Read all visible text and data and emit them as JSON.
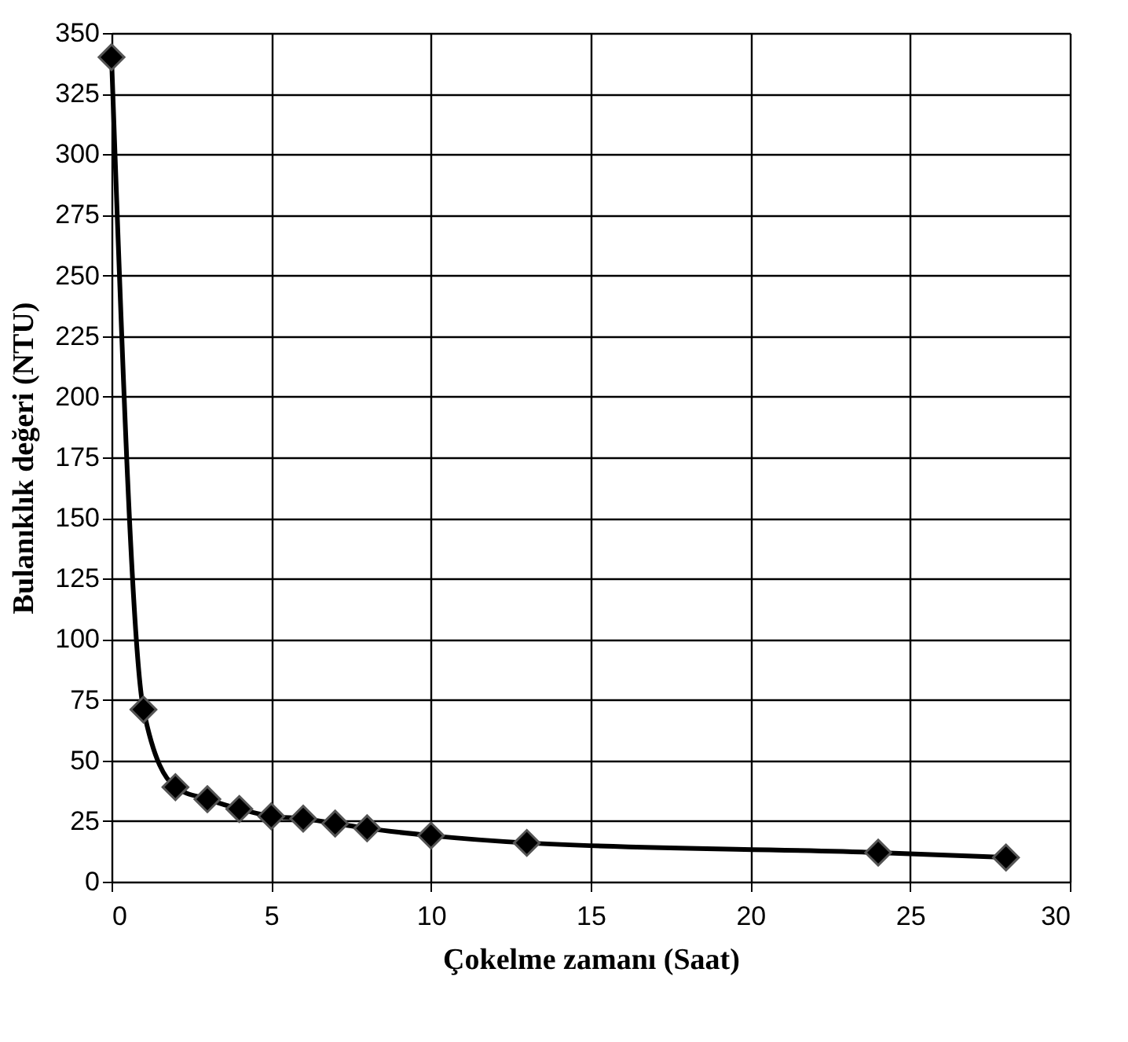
{
  "chart_data": {
    "type": "line",
    "xlabel": "Çokelme zamanı (Saat)",
    "ylabel": "Bulanıklık değeri (NTU)",
    "x": [
      0,
      1,
      2,
      3,
      4,
      5,
      6,
      7,
      8,
      10,
      13,
      24,
      28
    ],
    "series": [
      {
        "color": "#000000",
        "values": [
          340,
          71,
          39,
          34,
          30,
          27,
          26,
          24,
          22,
          19,
          16,
          12,
          10
        ]
      }
    ],
    "xlim": [
      0,
      30
    ],
    "xticks": [
      0,
      5,
      10,
      15,
      20,
      25,
      30
    ],
    "ylim": [
      0,
      350
    ],
    "yticks": [
      0,
      25,
      50,
      75,
      100,
      125,
      150,
      175,
      200,
      225,
      250,
      275,
      300,
      325,
      350
    ],
    "grid": true,
    "marker": "diamond",
    "line_style": "solid"
  }
}
